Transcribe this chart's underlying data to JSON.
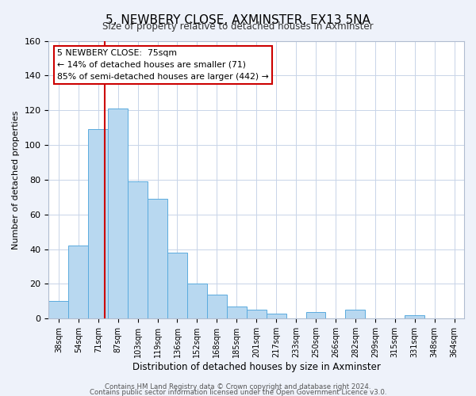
{
  "title": "5, NEWBERY CLOSE, AXMINSTER, EX13 5NA",
  "subtitle": "Size of property relative to detached houses in Axminster",
  "xlabel": "Distribution of detached houses by size in Axminster",
  "ylabel": "Number of detached properties",
  "bar_labels": [
    "38sqm",
    "54sqm",
    "71sqm",
    "87sqm",
    "103sqm",
    "119sqm",
    "136sqm",
    "152sqm",
    "168sqm",
    "185sqm",
    "201sqm",
    "217sqm",
    "233sqm",
    "250sqm",
    "266sqm",
    "282sqm",
    "299sqm",
    "315sqm",
    "331sqm",
    "348sqm",
    "364sqm"
  ],
  "bar_values": [
    10,
    42,
    109,
    121,
    79,
    69,
    38,
    20,
    14,
    7,
    5,
    3,
    0,
    4,
    0,
    5,
    0,
    0,
    2,
    0,
    0
  ],
  "bar_color": "#b8d8f0",
  "bar_edge_color": "#5aabde",
  "vline_color": "#cc0000",
  "vline_x": 2.35,
  "annotation_title": "5 NEWBERY CLOSE:  75sqm",
  "annotation_line1": "← 14% of detached houses are smaller (71)",
  "annotation_line2": "85% of semi-detached houses are larger (442) →",
  "ylim": [
    0,
    160
  ],
  "yticks": [
    0,
    20,
    40,
    60,
    80,
    100,
    120,
    140,
    160
  ],
  "footer_line1": "Contains HM Land Registry data © Crown copyright and database right 2024.",
  "footer_line2": "Contains public sector information licensed under the Open Government Licence v3.0.",
  "background_color": "#eef2fa",
  "plot_background_color": "#ffffff",
  "grid_color": "#c8d4e8"
}
